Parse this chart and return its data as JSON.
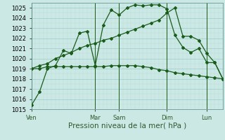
{
  "background_color": "#cce8e4",
  "grid_major_color": "#99cccc",
  "grid_minor_color": "#b8ddd8",
  "line_color": "#1a5c1a",
  "marker": "D",
  "marker_size": 2.0,
  "linewidth": 0.9,
  "ylim": [
    1015,
    1025.5
  ],
  "yticks": [
    1015,
    1016,
    1017,
    1018,
    1019,
    1020,
    1021,
    1022,
    1023,
    1024,
    1025
  ],
  "xlabel": "Pression niveau de la mer( hPa )",
  "xlabel_fontsize": 7.5,
  "tick_fontsize": 6.0,
  "day_labels": [
    "Ven",
    "Mar",
    "Sam",
    "Dim",
    "Lun"
  ],
  "day_positions": [
    0,
    8,
    11,
    17,
    22
  ],
  "n_points": 25,
  "series1": [
    1015.4,
    1016.7,
    1019.0,
    1019.3,
    1020.8,
    1020.5,
    1022.5,
    1022.7,
    1019.3,
    1023.3,
    1024.8,
    1024.3,
    1025.0,
    1025.3,
    1025.2,
    1025.3,
    1025.3,
    1024.9,
    1022.3,
    1021.1,
    1020.6,
    1021.0,
    1019.6,
    1019.6,
    1018.0
  ],
  "series2": [
    1019.0,
    1019.0,
    1019.2,
    1019.2,
    1019.2,
    1019.2,
    1019.2,
    1019.2,
    1019.2,
    1019.2,
    1019.3,
    1019.3,
    1019.3,
    1019.3,
    1019.2,
    1019.1,
    1018.9,
    1018.8,
    1018.6,
    1018.5,
    1018.4,
    1018.3,
    1018.2,
    1018.1,
    1018.0
  ],
  "series3": [
    1019.0,
    1019.3,
    1019.5,
    1020.0,
    1020.3,
    1020.6,
    1021.0,
    1021.3,
    1021.5,
    1021.8,
    1022.0,
    1022.3,
    1022.6,
    1022.9,
    1023.2,
    1023.5,
    1023.8,
    1024.5,
    1025.0,
    1022.2,
    1022.2,
    1021.8,
    1020.5,
    1019.6,
    1018.0
  ]
}
